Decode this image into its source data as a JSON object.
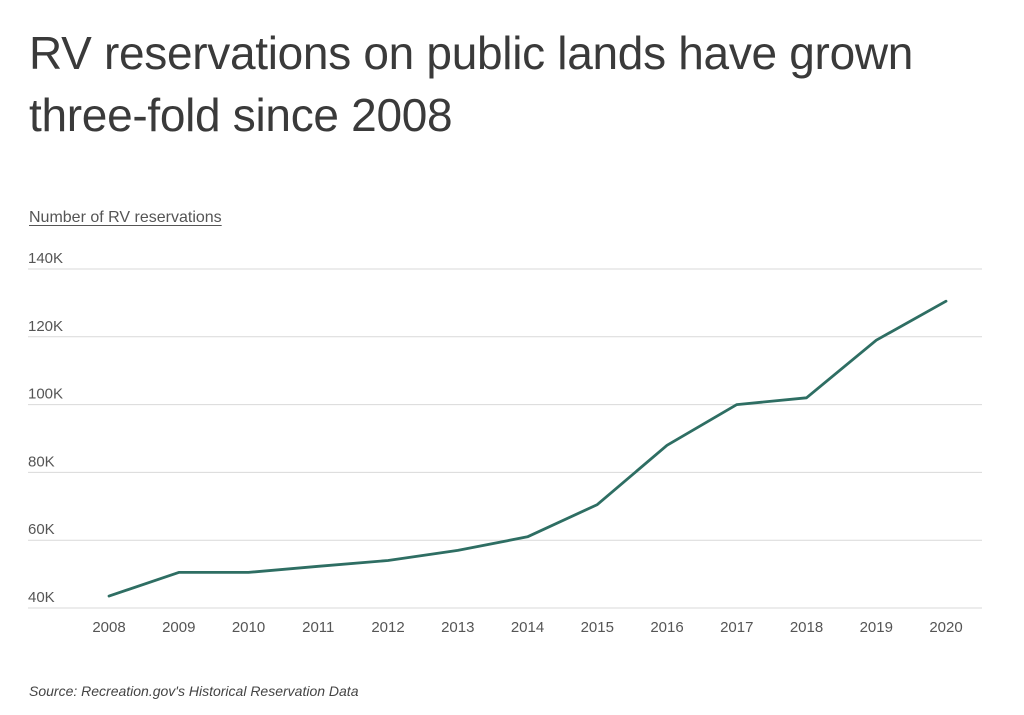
{
  "chart_data": {
    "type": "line",
    "title": "RV reservations on public lands have grown three-fold since 2008",
    "ylabel": "Number of RV reservations",
    "xlabel": "",
    "x": [
      "2008",
      "2009",
      "2010",
      "2011",
      "2012",
      "2013",
      "2014",
      "2015",
      "2016",
      "2017",
      "2018",
      "2019",
      "2020"
    ],
    "series": [
      {
        "values": [
          43500,
          50500,
          50500,
          52300,
          54000,
          57000,
          61000,
          70500,
          88000,
          100000,
          102000,
          119000,
          130500
        ]
      }
    ],
    "ylim": [
      40000,
      140000
    ],
    "yticks": [
      40000,
      60000,
      80000,
      100000,
      120000,
      140000
    ],
    "ytick_labels": [
      "40K",
      "60K",
      "80K",
      "100K",
      "120K",
      "140K"
    ],
    "grid": true,
    "legend": "none",
    "line_color": "#2e6e63"
  },
  "source_text": "Source:  Recreation.gov's Historical Reservation Data"
}
